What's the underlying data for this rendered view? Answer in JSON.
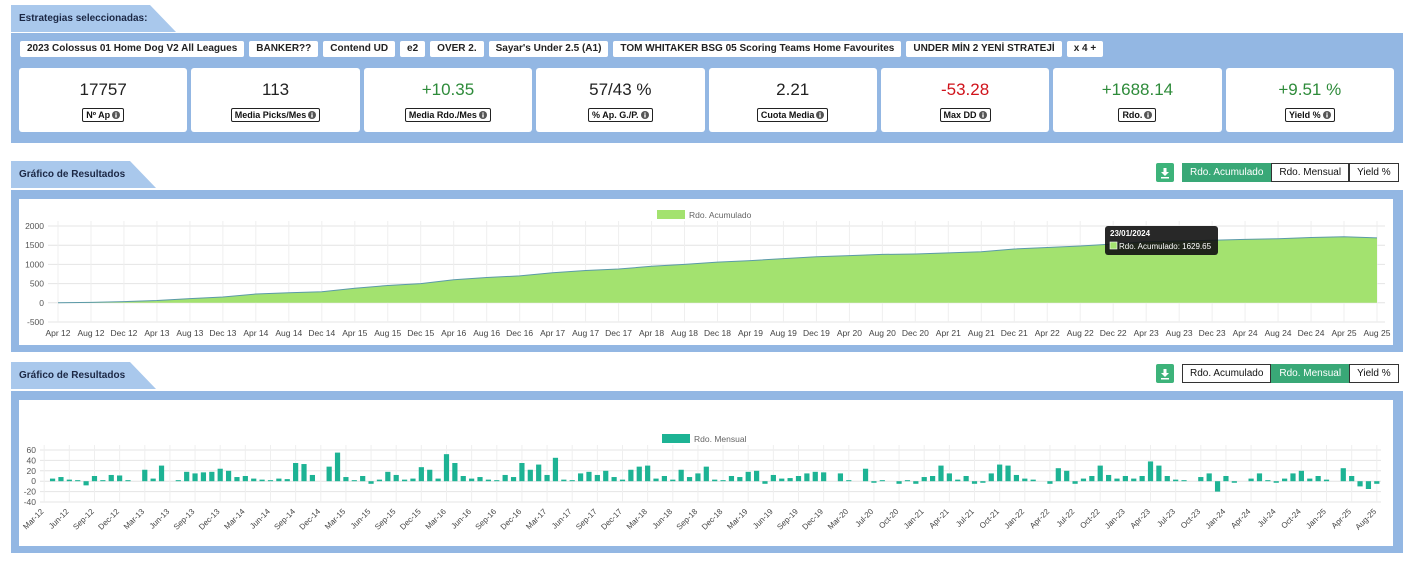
{
  "header": {
    "title": "Estrategias seleccionadas:"
  },
  "strategies": [
    "2023 Colossus 01 Home Dog V2 All Leagues",
    "BANKER??",
    "Contend UD",
    "e2",
    "OVER 2.",
    "Sayar's Under 2.5 (A1)",
    "TOM WHITAKER BSG 05 Scoring Teams Home Favourites",
    "UNDER MİN 2 YENİ STRATEJİ",
    "x 4 +"
  ],
  "stats": [
    {
      "value": "17757",
      "label": "Nº Ap",
      "color": "#222222"
    },
    {
      "value": "113",
      "label": "Media Picks/Mes",
      "color": "#222222"
    },
    {
      "value": "+10.35",
      "label": "Media Rdo./Mes",
      "color": "#2e8b3a"
    },
    {
      "value": "57/43 %",
      "label": "% Ap. G./P.",
      "color": "#222222"
    },
    {
      "value": "2.21",
      "label": "Cuota Media",
      "color": "#222222"
    },
    {
      "value": "-53.28",
      "label": "Max DD",
      "color": "#d0131b"
    },
    {
      "value": "+1688.14",
      "label": "Rdo.",
      "color": "#2e8b3a"
    },
    {
      "value": "+9.51 %",
      "label": "Yield %",
      "color": "#2e8b3a"
    }
  ],
  "chart_data": [
    {
      "type": "area",
      "title": "Gráfico de Resultados",
      "buttons": [
        "Rdo. Acumulado",
        "Rdo. Mensual",
        "Yield %"
      ],
      "active_button": 0,
      "categories": [
        "Apr 12",
        "Aug 12",
        "Dec 12",
        "Apr 13",
        "Aug 13",
        "Dec 13",
        "Apr 14",
        "Aug 14",
        "Dec 14",
        "Apr 15",
        "Aug 15",
        "Dec 15",
        "Apr 16",
        "Aug 16",
        "Dec 16",
        "Apr 17",
        "Aug 17",
        "Dec 17",
        "Apr 18",
        "Aug 18",
        "Dec 18",
        "Apr 19",
        "Aug 19",
        "Dec 19",
        "Apr 20",
        "Aug 20",
        "Dec 20",
        "Apr 21",
        "Aug 21",
        "Dec 21",
        "Apr 22",
        "Aug 22",
        "Dec 22",
        "Apr 23",
        "Aug 23",
        "Dec 23",
        "Apr 24",
        "Aug 24",
        "Dec 24",
        "Apr 25",
        "Aug 25"
      ],
      "series": [
        {
          "name": "Rdo. Acumulado",
          "color": "#a3e26f",
          "line_color": "#5b9aa8",
          "values": [
            0,
            10,
            30,
            60,
            110,
            150,
            230,
            260,
            290,
            380,
            450,
            500,
            600,
            660,
            700,
            780,
            840,
            880,
            950,
            1000,
            1060,
            1100,
            1150,
            1200,
            1230,
            1260,
            1270,
            1300,
            1330,
            1400,
            1440,
            1480,
            1530,
            1590,
            1610,
            1630,
            1650,
            1670,
            1700,
            1720,
            1690
          ]
        }
      ],
      "ylim": [
        -500,
        2000
      ],
      "yticks": [
        -500,
        0,
        500,
        1000,
        1500,
        2000
      ],
      "grid": true,
      "tooltip": {
        "title": "23/01/2024",
        "text": "Rdo. Acumulado: 1629.65"
      }
    },
    {
      "type": "bar",
      "title": "Gráfico de Resultados",
      "buttons": [
        "Rdo. Acumulado",
        "Rdo. Mensual",
        "Yield %"
      ],
      "active_button": 1,
      "categories": [
        "Mar-12",
        null,
        null,
        "Jun-12",
        null,
        null,
        "Sep-12",
        null,
        null,
        "Dec-12",
        null,
        null,
        "Mar-13",
        null,
        null,
        "Jun-13",
        null,
        null,
        "Sep-13",
        null,
        null,
        "Dec-13",
        null,
        null,
        "Mar-14",
        null,
        null,
        "Jun-14",
        null,
        null,
        "Sep-14",
        null,
        null,
        "Dec-14",
        null,
        null,
        "Mar-15",
        null,
        null,
        "Jun-15",
        null,
        null,
        "Sep-15",
        null,
        null,
        "Dec-15",
        null,
        null,
        "Mar-16",
        null,
        null,
        "Jun-16",
        null,
        null,
        "Sep-16",
        null,
        null,
        "Dec-16",
        null,
        null,
        "Mar-17",
        null,
        null,
        "Jun-17",
        null,
        null,
        "Sep-17",
        null,
        null,
        "Dec-17",
        null,
        null,
        "Mar-18",
        null,
        null,
        "Jun-18",
        null,
        null,
        "Sep-18",
        null,
        null,
        "Dec-18",
        null,
        null,
        "Mar-19",
        null,
        null,
        "Jun-19",
        null,
        null,
        "Sep-19",
        null,
        null,
        "Dec-19",
        null,
        null,
        "Mar-20",
        null,
        null,
        "Jul-20",
        null,
        null,
        "Oct-20",
        null,
        null,
        "Jan-21",
        null,
        null,
        "Apr-21",
        null,
        null,
        "Jul-21",
        null,
        null,
        "Oct-21",
        null,
        null,
        "Jan-22",
        null,
        null,
        "Apr-22",
        null,
        null,
        "Jul-22",
        null,
        null,
        "Oct-22",
        null,
        null,
        "Jan-23",
        null,
        null,
        "Apr-23",
        null,
        null,
        "Jul-23",
        null,
        null,
        "Oct-23",
        null,
        null,
        "Jan-24",
        null,
        null,
        "Apr-24",
        null,
        null,
        "Jul-24",
        null,
        null,
        "Oct-24",
        null,
        null,
        "Jan-25",
        null,
        null,
        "Apr-25",
        null,
        null,
        "Aug-25"
      ],
      "series": [
        {
          "name": "Rdo. Mensual",
          "color": "#1db394",
          "values": [
            0,
            5,
            8,
            3,
            2,
            -8,
            10,
            2,
            12,
            11,
            2,
            0,
            22,
            5,
            30,
            0,
            2,
            18,
            15,
            17,
            18,
            24,
            20,
            8,
            10,
            5,
            3,
            2,
            5,
            4,
            35,
            33,
            12,
            0,
            28,
            55,
            8,
            2,
            10,
            -5,
            3,
            18,
            12,
            3,
            5,
            27,
            22,
            5,
            52,
            35,
            10,
            5,
            8,
            3,
            2,
            12,
            8,
            35,
            22,
            32,
            12,
            45,
            3,
            2,
            15,
            18,
            12,
            20,
            8,
            3,
            22,
            28,
            30,
            5,
            10,
            3,
            22,
            8,
            15,
            28,
            3,
            2,
            10,
            8,
            18,
            20,
            -5,
            12,
            5,
            6,
            10,
            15,
            18,
            17,
            0,
            15,
            2,
            0,
            24,
            -3,
            2,
            0,
            -5,
            2,
            -5,
            8,
            10,
            30,
            15,
            3,
            10,
            -5,
            -3,
            15,
            32,
            30,
            12,
            5,
            3,
            0,
            -5,
            25,
            20,
            -5,
            5,
            10,
            30,
            12,
            5,
            10,
            5,
            10,
            38,
            30,
            10,
            3,
            2,
            0,
            8,
            15,
            -20,
            10,
            -3,
            0,
            5,
            15,
            2,
            -3,
            5,
            15,
            20,
            5,
            10,
            3,
            0,
            25,
            10,
            -10,
            -15,
            -5
          ]
        }
      ],
      "ylim": [
        -40,
        60
      ],
      "yticks": [
        -40,
        -20,
        0,
        20,
        40,
        60
      ],
      "grid": true
    }
  ]
}
